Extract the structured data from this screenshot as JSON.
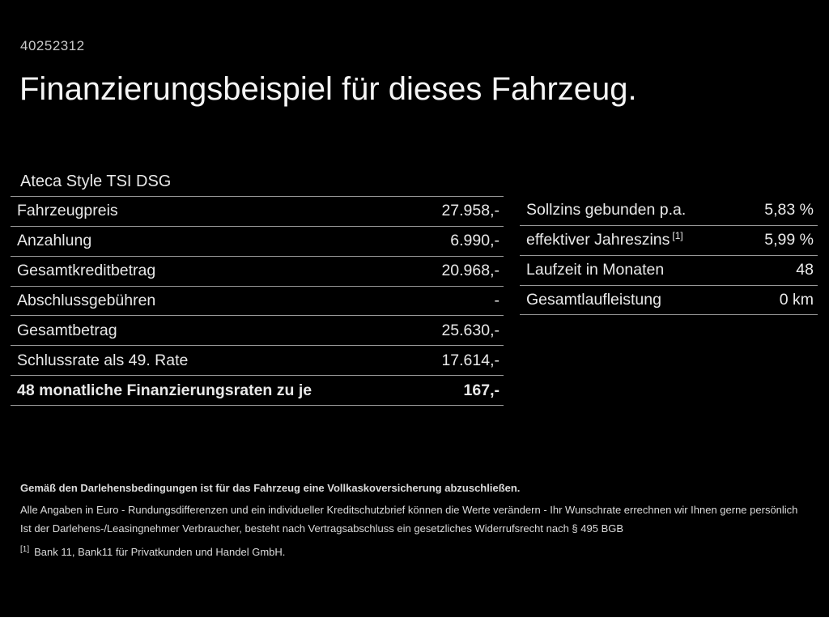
{
  "page": {
    "doc_number": "40252312",
    "title": "Finanzierungsbeispiel für dieses Fahrzeug.",
    "vehicle_model": "Ateca Style TSI DSG"
  },
  "financing_table": {
    "rows": [
      {
        "label": "Fahrzeugpreis",
        "value": "27.958,-"
      },
      {
        "label": "Anzahlung",
        "value": "6.990,-"
      },
      {
        "label": "Gesamtkreditbetrag",
        "value": "20.968,-"
      },
      {
        "label": "Abschlussgebühren",
        "value": "-"
      },
      {
        "label": "Gesamtbetrag",
        "value": "25.630,-"
      },
      {
        "label": "Schlussrate als 49. Rate",
        "value": "17.614,-"
      },
      {
        "label": "48 monatliche Finanzierungsraten zu je",
        "value": "167,-"
      }
    ]
  },
  "conditions_table": {
    "rows": [
      {
        "label": "Sollzins gebunden p.a.",
        "sup": "",
        "value": "5,83 %"
      },
      {
        "label": "effektiver Jahreszins",
        "sup": "[1]",
        "value": "5,99 %"
      },
      {
        "label": "Laufzeit in Monaten",
        "sup": "",
        "value": "48"
      },
      {
        "label": "Gesamtlaufleistung",
        "sup": "",
        "value": "0 km"
      }
    ]
  },
  "footnotes": {
    "insurance_bold": "Gemäß den Darlehensbedingungen ist für das Fahrzeug eine Vollkaskoversicherung abzuschließen.",
    "disclaimer": "Alle Angaben in Euro - Rundungsdifferenzen und ein individueller Kreditschutzbrief können die Werte verändern - Ihr Wunschrate errechnen wir Ihnen gerne persönlich",
    "withdrawal": "Ist der Darlehens-/Leasingnehmer Verbraucher, besteht nach Vertragsabschluss ein gesetzliches Widerrufsrecht nach § 495 BGB",
    "bank_marker": "[1]",
    "bank": "Bank 11, Bank11 für Privatkunden und Handel GmbH."
  },
  "colors": {
    "background": "#000000",
    "text_primary": "#e9e9e9",
    "text_title": "#f5f5f5",
    "divider": "#979797"
  }
}
